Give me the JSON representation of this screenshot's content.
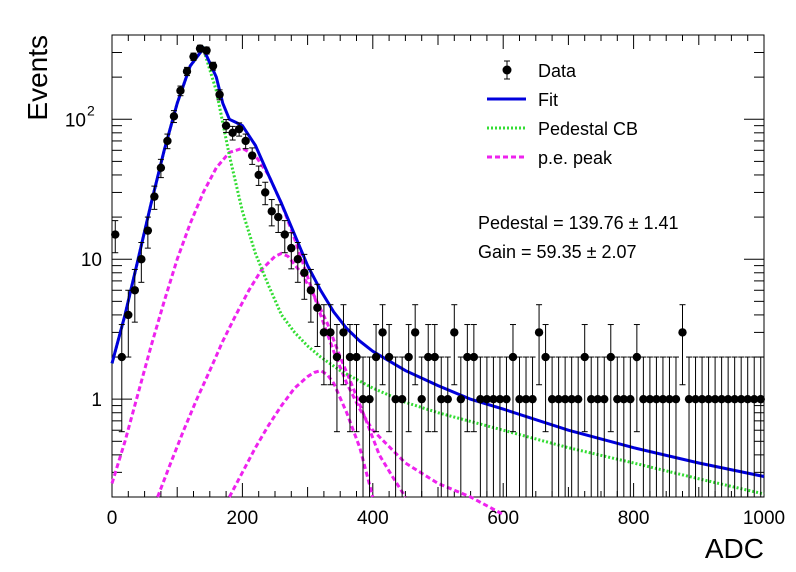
{
  "chart_data": {
    "type": "scatter",
    "title": "",
    "xlabel": "ADC",
    "ylabel": "Events",
    "xlim": [
      0,
      1000
    ],
    "ylim": [
      0.2,
      400
    ],
    "y_scale": "log",
    "x_ticks": [
      0,
      200,
      400,
      600,
      800,
      1000
    ],
    "y_ticks": [
      {
        "value": 1,
        "label": "1"
      },
      {
        "value": 10,
        "label": "10"
      },
      {
        "value": 100,
        "label": "10",
        "exponent": "2"
      }
    ],
    "grid": false,
    "legend_position": "top-right",
    "legend": [
      {
        "label": "Data",
        "style": "marker",
        "color": "#000000"
      },
      {
        "label": "Fit",
        "style": "solid",
        "color": "#0000dd"
      },
      {
        "label": "Pedestal CB",
        "style": "dotted",
        "color": "#33dd33"
      },
      {
        "label": "p.e. peak",
        "style": "dashed",
        "color": "#ee22ee"
      }
    ],
    "annotations": [
      {
        "label": "Pedestal",
        "value": "139.76",
        "error": "1.41"
      },
      {
        "label": "Gain",
        "value": "59.35",
        "error": "2.07"
      }
    ],
    "data_points": {
      "name": "Data",
      "x": [
        5,
        15,
        25,
        35,
        45,
        55,
        65,
        75,
        85,
        95,
        105,
        115,
        125,
        135,
        145,
        155,
        165,
        175,
        185,
        195,
        205,
        215,
        225,
        235,
        245,
        255,
        265,
        275,
        285,
        295,
        305,
        315,
        325,
        335,
        345,
        355,
        365,
        375,
        385,
        395,
        405,
        415,
        425,
        435,
        445,
        455,
        465,
        475,
        485,
        495,
        505,
        515,
        525,
        535,
        545,
        555,
        565,
        575,
        585,
        595,
        605,
        615,
        625,
        635,
        645,
        655,
        665,
        675,
        685,
        695,
        705,
        715,
        725,
        735,
        745,
        755,
        765,
        775,
        785,
        795,
        805,
        815,
        825,
        835,
        845,
        855,
        865,
        875,
        885,
        895,
        905,
        915,
        925,
        935,
        945,
        955,
        965,
        975,
        985,
        995
      ],
      "y": [
        15,
        2,
        4,
        6,
        10,
        16,
        28,
        45,
        70,
        105,
        160,
        220,
        280,
        320,
        310,
        240,
        150,
        90,
        80,
        85,
        70,
        55,
        40,
        30,
        22,
        20,
        15,
        12,
        10,
        8,
        6,
        4.5,
        3,
        3,
        2,
        3,
        2,
        2,
        1,
        1,
        2,
        3,
        2,
        1,
        1,
        2,
        3,
        1,
        2,
        2,
        1,
        1,
        3,
        1,
        2,
        2,
        1,
        1,
        1,
        1,
        1,
        2,
        1,
        1,
        1,
        3,
        2,
        1,
        1,
        1,
        1,
        1,
        2,
        1,
        1,
        1,
        2,
        1,
        1,
        1,
        2,
        1,
        1,
        1,
        1,
        1,
        1,
        3,
        1,
        1,
        1,
        1,
        1,
        1,
        1,
        1,
        1,
        1,
        1,
        1
      ]
    },
    "series": [
      {
        "name": "Fit",
        "x": [
          0,
          20,
          40,
          60,
          80,
          100,
          120,
          140,
          160,
          170,
          180,
          190,
          200,
          220,
          240,
          260,
          280,
          300,
          320,
          340,
          360,
          380,
          400,
          450,
          500,
          550,
          600,
          700,
          800,
          900,
          1000
        ],
        "y": [
          1.8,
          4,
          10,
          25,
          60,
          130,
          240,
          320,
          200,
          130,
          100,
          95,
          90,
          65,
          40,
          25,
          15,
          9,
          6,
          4.2,
          3.2,
          2.6,
          2.2,
          1.6,
          1.25,
          1.0,
          0.85,
          0.6,
          0.45,
          0.35,
          0.28
        ]
      },
      {
        "name": "Pedestal CB",
        "x": [
          0,
          20,
          40,
          60,
          80,
          100,
          120,
          140,
          160,
          180,
          200,
          220,
          240,
          260,
          280,
          300,
          320,
          350,
          400,
          450,
          500,
          600,
          700,
          800,
          900,
          1000
        ],
        "y": [
          1.8,
          4,
          10,
          25,
          60,
          130,
          240,
          320,
          160,
          55,
          22,
          11,
          6.5,
          4,
          3,
          2.4,
          2,
          1.6,
          1.2,
          0.95,
          0.8,
          0.6,
          0.45,
          0.35,
          0.27,
          0.21
        ]
      },
      {
        "name": "p.e. peak 1",
        "x": [
          0,
          20,
          40,
          60,
          80,
          100,
          120,
          140,
          160,
          180,
          200,
          220,
          240,
          260,
          280,
          300,
          320,
          340,
          360,
          380,
          400,
          450,
          500,
          550,
          600
        ],
        "y": [
          0.25,
          0.5,
          1.1,
          2.4,
          5,
          10,
          18,
          30,
          45,
          58,
          62,
          55,
          40,
          25,
          14,
          7.5,
          4,
          2.2,
          1.3,
          0.85,
          0.6,
          0.35,
          0.25,
          0.2,
          0.15
        ]
      },
      {
        "name": "p.e. peak 2",
        "x": [
          70,
          90,
          110,
          130,
          150,
          170,
          190,
          210,
          230,
          250,
          260,
          270,
          290,
          310,
          330,
          350,
          370,
          390,
          410,
          430,
          450
        ],
        "y": [
          0.2,
          0.35,
          0.6,
          1.0,
          1.6,
          2.6,
          4,
          6,
          8.5,
          10.5,
          11,
          10.5,
          8,
          5.5,
          3.5,
          2,
          1.2,
          0.7,
          0.4,
          0.28,
          0.2
        ]
      },
      {
        "name": "p.e. peak 3",
        "x": [
          180,
          200,
          220,
          240,
          260,
          280,
          300,
          310,
          320,
          330,
          340,
          360,
          380,
          400
        ],
        "y": [
          0.2,
          0.3,
          0.45,
          0.65,
          0.9,
          1.2,
          1.45,
          1.55,
          1.6,
          1.5,
          1.3,
          0.8,
          0.45,
          0.2
        ]
      }
    ]
  }
}
